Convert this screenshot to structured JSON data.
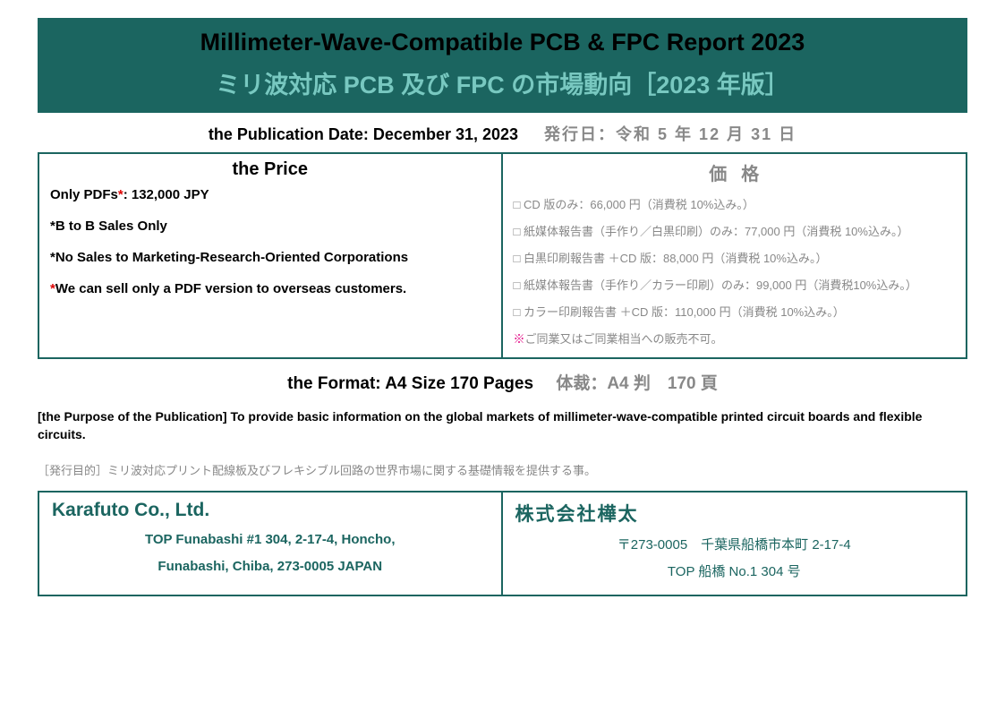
{
  "colors": {
    "teal": "#1b6560",
    "teal_light": "#78c8c0",
    "gray": "#888888",
    "red": "#dd0000",
    "magenta": "#e20080"
  },
  "header": {
    "title_en": "Millimeter-Wave-Compatible PCB & FPC Report 2023",
    "title_jp": "ミリ波対応 PCB 及び FPC の市場動向［2023 年版］"
  },
  "publication": {
    "en": "the Publication Date: December 31, 2023",
    "jp": "発行日：令和 5 年 12 月 31 日"
  },
  "price": {
    "head_en": "the Price",
    "head_jp": "価格",
    "en_lines": {
      "l1_pre": "Only PDFs",
      "l1_star": "*",
      "l1_post": ": 132,000 JPY",
      "l2": "*B to B Sales Only",
      "l3": "*No Sales to Marketing-Research-Oriented Corporations",
      "l4_star": "*",
      "l4_post": "We can sell only a PDF version to overseas customers."
    },
    "jp_lines": [
      "□ CD 版のみ：66,000 円（消費税 10%込み。）",
      "□ 紙媒体報告書（手作り／白黒印刷）のみ：77,000 円（消費税 10%込み。）",
      "□ 白黒印刷報告書 ＋CD 版：88,000 円（消費税 10%込み。）",
      "□ 紙媒体報告書（手作り／カラー印刷）のみ：99,000 円（消費税10%込み。）",
      "□ カラー印刷報告書 ＋CD 版：110,000 円（消費税 10%込み。）"
    ],
    "jp_warn_mark": "※",
    "jp_warn": "ご同業又はご同業相当への販売不可。"
  },
  "format": {
    "en": "the Format: A4 Size 170 Pages",
    "jp": "体裁：A4 判　170 頁"
  },
  "purpose": {
    "en": "[the Purpose of the Publication] To provide basic information on the global markets of millimeter-wave-compatible printed circuit boards and flexible circuits.",
    "jp": "［発行目的］ミリ波対応プリント配線板及びフレキシブル回路の世界市場に関する基礎情報を提供する事。"
  },
  "company": {
    "name_en": "Karafuto Co., Ltd.",
    "addr_en_1": "TOP Funabashi #1 304, 2-17-4, Honcho,",
    "addr_en_2": "Funabashi, Chiba, 273-0005 JAPAN",
    "name_jp": "株式会社樺太",
    "addr_jp_1": "〒273-0005　千葉県船橋市本町 2-17-4",
    "addr_jp_2": "TOP 船橋 No.1 304 号"
  }
}
